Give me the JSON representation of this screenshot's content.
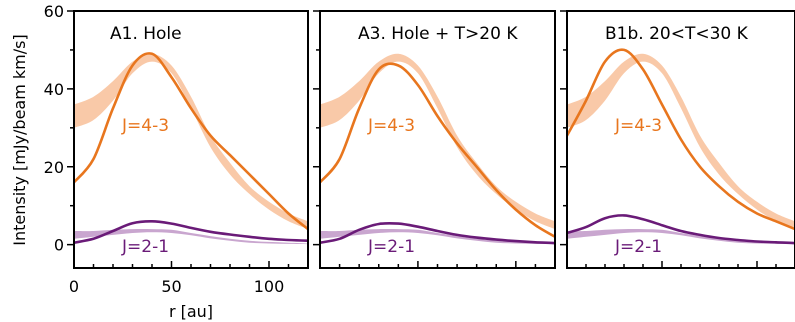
{
  "colors": {
    "j43_model": "#e8761e",
    "j43_obs": "#f9c9a8",
    "j21_model": "#6a1b78",
    "j21_obs": "#c9a6cf",
    "frame": "#000000"
  },
  "chart_data": [
    {
      "type": "line",
      "title": "A1. Hole",
      "xlabel": "r [au]",
      "ylabel": "Intensity [mJy/beam km/s]",
      "xlim": [
        0,
        120
      ],
      "ylim": [
        -6,
        60
      ],
      "xticks": [
        "0",
        "50",
        "100"
      ],
      "yticks": [
        "0",
        "20",
        "40",
        "60"
      ],
      "series": [
        {
          "name": "J=4-3",
          "kind": "obs_band",
          "x": [
            0,
            10,
            20,
            30,
            40,
            50,
            60,
            70,
            80,
            90,
            100,
            110,
            120
          ],
          "lower": [
            30,
            32,
            37,
            44,
            47,
            44,
            35,
            25,
            18,
            13,
            9,
            6,
            4
          ],
          "upper": [
            36,
            38,
            42,
            47,
            49,
            46,
            38,
            28,
            21,
            15,
            11,
            8,
            6
          ]
        },
        {
          "name": "J=4-3",
          "kind": "model",
          "x": [
            0,
            10,
            20,
            30,
            40,
            50,
            60,
            70,
            80,
            90,
            100,
            110,
            120
          ],
          "y": [
            16,
            22,
            35,
            46,
            49,
            43,
            35,
            28,
            23,
            18,
            13,
            8,
            4
          ]
        },
        {
          "name": "J=2-1",
          "kind": "obs_band",
          "x": [
            0,
            10,
            20,
            30,
            40,
            50,
            60,
            70,
            80,
            90,
            100,
            110,
            120
          ],
          "lower": [
            1.5,
            2,
            2.5,
            3,
            3.2,
            3,
            2.4,
            1.6,
            1,
            0.5,
            0.3,
            0.2,
            0.1
          ],
          "upper": [
            3.5,
            3.5,
            3.8,
            4,
            4,
            3.8,
            3,
            2.2,
            1.5,
            1,
            0.7,
            0.5,
            0.3
          ]
        },
        {
          "name": "J=2-1",
          "kind": "model",
          "x": [
            0,
            10,
            20,
            30,
            40,
            50,
            60,
            70,
            80,
            90,
            100,
            110,
            120
          ],
          "y": [
            0.5,
            1.5,
            3.5,
            5.5,
            6,
            5.4,
            4.3,
            3.3,
            2.6,
            2,
            1.5,
            1.2,
            1
          ]
        }
      ],
      "annotations": [
        "J=4-3",
        "J=2-1"
      ]
    },
    {
      "type": "line",
      "title": "A3. Hole + T>20 K",
      "xlim": [
        0,
        120
      ],
      "ylim": [
        -6,
        60
      ],
      "series": [
        {
          "name": "J=4-3",
          "kind": "obs_band",
          "x": [
            0,
            10,
            20,
            30,
            40,
            50,
            60,
            70,
            80,
            90,
            100,
            110,
            120
          ],
          "lower": [
            30,
            32,
            37,
            44,
            47,
            44,
            35,
            25,
            18,
            13,
            9,
            6,
            4
          ],
          "upper": [
            36,
            38,
            42,
            47,
            49,
            46,
            38,
            28,
            21,
            15,
            11,
            8,
            6
          ]
        },
        {
          "name": "J=4-3",
          "kind": "model",
          "x": [
            0,
            10,
            20,
            30,
            40,
            50,
            60,
            70,
            80,
            90,
            100,
            110,
            120
          ],
          "y": [
            16,
            22,
            35,
            45,
            46,
            41,
            33,
            26,
            20,
            14,
            9,
            5,
            2
          ]
        },
        {
          "name": "J=2-1",
          "kind": "obs_band",
          "x": [
            0,
            10,
            20,
            30,
            40,
            50,
            60,
            70,
            80,
            90,
            100,
            110,
            120
          ],
          "lower": [
            1.5,
            2,
            2.5,
            3,
            3.2,
            3,
            2.4,
            1.6,
            1,
            0.5,
            0.3,
            0.2,
            0.1
          ],
          "upper": [
            3.5,
            3.5,
            3.8,
            4,
            4,
            3.8,
            3,
            2.2,
            1.5,
            1,
            0.7,
            0.5,
            0.3
          ]
        },
        {
          "name": "J=2-1",
          "kind": "model",
          "x": [
            0,
            10,
            20,
            30,
            40,
            50,
            60,
            70,
            80,
            90,
            100,
            110,
            120
          ],
          "y": [
            0.5,
            1.5,
            3.8,
            5.3,
            5.4,
            4.6,
            3.5,
            2.5,
            1.8,
            1.3,
            0.9,
            0.6,
            0.4
          ]
        }
      ],
      "annotations": [
        "J=4-3",
        "J=2-1"
      ]
    },
    {
      "type": "line",
      "title": "B1b. 20<T<30 K",
      "xlim": [
        0,
        120
      ],
      "ylim": [
        -6,
        60
      ],
      "series": [
        {
          "name": "J=4-3",
          "kind": "obs_band",
          "x": [
            0,
            10,
            20,
            30,
            40,
            50,
            60,
            70,
            80,
            90,
            100,
            110,
            120
          ],
          "lower": [
            30,
            32,
            37,
            44,
            47,
            44,
            35,
            25,
            18,
            13,
            9,
            6,
            4
          ],
          "upper": [
            36,
            38,
            42,
            47,
            49,
            46,
            38,
            28,
            21,
            15,
            11,
            8,
            6
          ]
        },
        {
          "name": "J=4-3",
          "kind": "model",
          "x": [
            0,
            10,
            20,
            30,
            40,
            50,
            60,
            70,
            80,
            90,
            100,
            110,
            120
          ],
          "y": [
            28,
            37,
            47,
            50,
            45,
            36,
            27,
            20,
            15,
            11,
            8,
            6,
            4
          ]
        },
        {
          "name": "J=2-1",
          "kind": "obs_band",
          "x": [
            0,
            10,
            20,
            30,
            40,
            50,
            60,
            70,
            80,
            90,
            100,
            110,
            120
          ],
          "lower": [
            1.5,
            2,
            2.5,
            3,
            3.2,
            3,
            2.4,
            1.6,
            1,
            0.5,
            0.3,
            0.2,
            0.1
          ],
          "upper": [
            3.5,
            3.5,
            3.8,
            4,
            4,
            3.8,
            3,
            2.2,
            1.5,
            1,
            0.7,
            0.5,
            0.3
          ]
        },
        {
          "name": "J=2-1",
          "kind": "model",
          "x": [
            0,
            10,
            20,
            30,
            40,
            50,
            60,
            70,
            80,
            90,
            100,
            110,
            120
          ],
          "y": [
            3,
            4.5,
            6.8,
            7.5,
            6.5,
            5,
            3.5,
            2.5,
            1.7,
            1.2,
            0.8,
            0.6,
            0.4
          ]
        }
      ],
      "annotations": [
        "J=4-3",
        "J=2-1"
      ]
    }
  ]
}
